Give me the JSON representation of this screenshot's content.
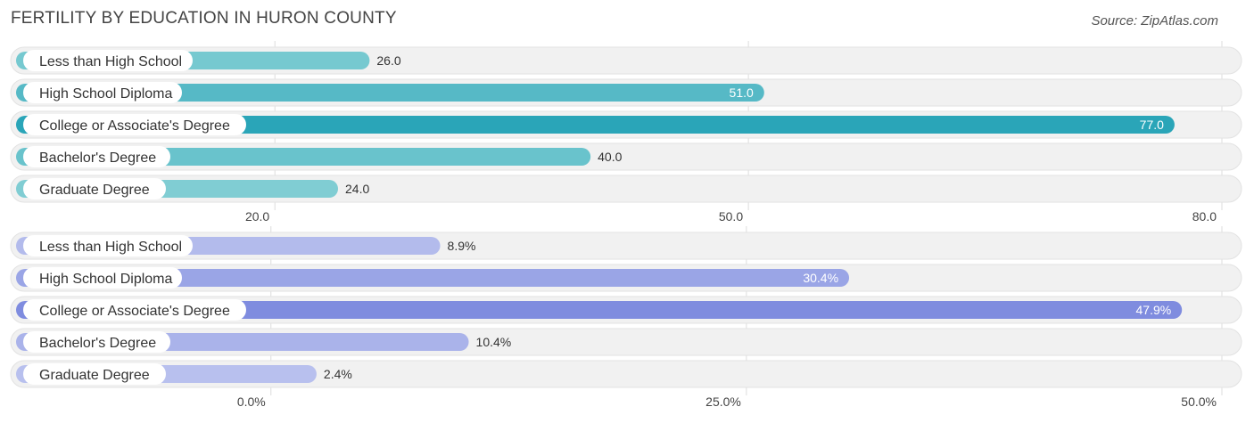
{
  "title": "FERTILITY BY EDUCATION IN HURON COUNTY",
  "source": "Source: ZipAtlas.com",
  "chart_data": [
    {
      "type": "bar",
      "orientation": "horizontal",
      "categories": [
        "Less than High School",
        "High School Diploma",
        "College or Associate's Degree",
        "Bachelor's Degree",
        "Graduate Degree"
      ],
      "values": [
        26.0,
        51.0,
        77.0,
        40.0,
        24.0
      ],
      "value_labels": [
        "26.0",
        "51.0",
        "77.0",
        "40.0",
        "24.0"
      ],
      "xlim": [
        3.6,
        80.0
      ],
      "ticks": [
        20.0,
        50.0,
        80.0
      ],
      "tick_labels": [
        "20.0",
        "50.0",
        "80.0"
      ],
      "colors": [
        "#76c9d0",
        "#56b9c6",
        "#2aa5b8",
        "#69c3cc",
        "#80cdd3"
      ],
      "grid": true
    },
    {
      "type": "bar",
      "orientation": "horizontal",
      "categories": [
        "Less than High School",
        "High School Diploma",
        "College or Associate's Degree",
        "Bachelor's Degree",
        "Graduate Degree"
      ],
      "values": [
        8.9,
        30.4,
        47.9,
        10.4,
        2.4
      ],
      "value_labels": [
        "8.9%",
        "30.4%",
        "47.9%",
        "10.4%",
        "2.4%"
      ],
      "xlim": [
        -13.4,
        50.0
      ],
      "ticks": [
        0.0,
        25.0,
        50.0
      ],
      "tick_labels": [
        "0.0%",
        "25.0%",
        "50.0%"
      ],
      "colors": [
        "#b3bbec",
        "#9aa5e6",
        "#7f8cdf",
        "#aab3ea",
        "#b8c0ee"
      ],
      "grid": true
    }
  ]
}
